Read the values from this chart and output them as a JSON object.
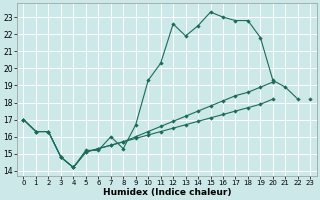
{
  "xlabel": "Humidex (Indice chaleur)",
  "background_color": "#cce8e8",
  "grid_color": "#ffffff",
  "line_color": "#1a6b5a",
  "xlim": [
    -0.5,
    23.5
  ],
  "ylim": [
    13.7,
    23.8
  ],
  "yticks": [
    14,
    15,
    16,
    17,
    18,
    19,
    20,
    21,
    22,
    23
  ],
  "xticks": [
    0,
    1,
    2,
    3,
    4,
    5,
    6,
    7,
    8,
    9,
    10,
    11,
    12,
    13,
    14,
    15,
    16,
    17,
    18,
    19,
    20,
    21,
    22,
    23
  ],
  "line1_x": [
    0,
    1,
    2,
    3,
    4,
    5,
    6,
    7,
    8,
    9,
    10,
    11,
    12,
    13,
    14,
    15,
    16,
    17,
    18,
    19,
    20,
    21,
    22
  ],
  "line1_y": [
    17.0,
    16.3,
    16.3,
    14.8,
    14.2,
    15.2,
    15.2,
    16.0,
    15.3,
    16.7,
    19.3,
    20.3,
    22.6,
    21.9,
    22.5,
    23.3,
    23.0,
    22.8,
    22.8,
    21.8,
    19.3,
    18.9,
    18.2
  ],
  "line2_x": [
    0,
    1,
    2,
    3,
    4,
    5,
    6,
    7,
    8,
    9,
    10,
    11,
    12,
    13,
    14,
    15,
    16,
    17,
    18,
    19,
    20,
    21,
    22,
    23
  ],
  "line2_y": [
    17.0,
    16.3,
    16.3,
    14.8,
    14.2,
    15.1,
    15.3,
    15.5,
    15.7,
    16.0,
    16.3,
    16.6,
    16.9,
    17.2,
    17.5,
    17.8,
    18.1,
    18.4,
    18.6,
    18.9,
    19.2,
    null,
    null,
    18.2
  ],
  "line3_x": [
    0,
    1,
    2,
    3,
    4,
    5,
    6,
    7,
    8,
    9,
    10,
    11,
    12,
    13,
    14,
    15,
    16,
    17,
    18,
    19,
    20
  ],
  "line3_y": [
    17.0,
    16.3,
    16.3,
    14.8,
    14.2,
    15.1,
    15.3,
    15.5,
    15.7,
    15.9,
    16.1,
    16.3,
    16.5,
    16.7,
    16.9,
    17.1,
    17.3,
    17.5,
    17.7,
    17.9,
    18.2
  ]
}
